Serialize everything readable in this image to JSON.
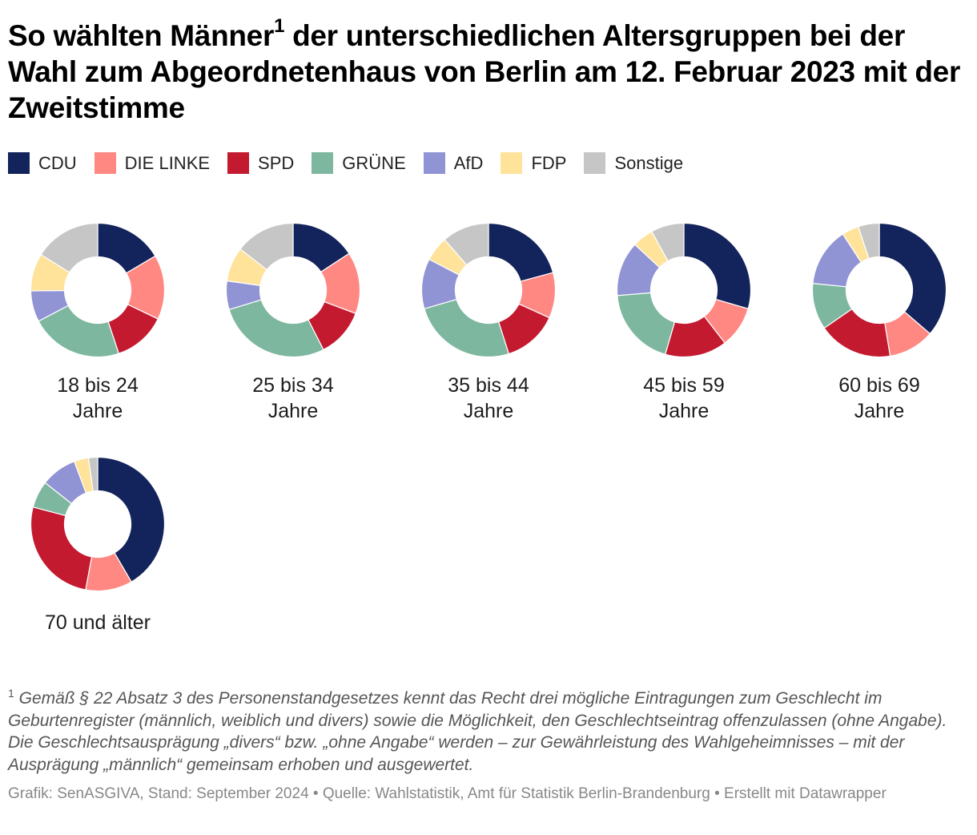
{
  "title": {
    "part1": "So wählten Männer",
    "superscript": "1",
    "part2": " der unterschiedlichen Altersgruppen bei der Wahl zum Abgeordnetenhaus von Berlin am 12. Februar 2023 mit der Zweitstimme"
  },
  "legend": [
    {
      "label": "CDU",
      "color": "#13235b"
    },
    {
      "label": "DIE LINKE",
      "color": "#ff8883"
    },
    {
      "label": "SPD",
      "color": "#c31a30"
    },
    {
      "label": "GRÜNE",
      "color": "#7db79f"
    },
    {
      "label": "AfD",
      "color": "#9093d4"
    },
    {
      "label": "FDP",
      "color": "#ffe39b"
    },
    {
      "label": "Sonstige",
      "color": "#c6c6c6"
    }
  ],
  "chart_data": {
    "type": "pie",
    "variant": "donut",
    "title": "So wählten Männer der unterschiedlichen Altersgruppen bei der Wahl zum Abgeordnetenhaus von Berlin am 12. Februar 2023 mit der Zweitstimme",
    "unit": "%",
    "categories": [
      "CDU",
      "DIE LINKE",
      "SPD",
      "GRÜNE",
      "AfD",
      "FDP",
      "Sonstige"
    ],
    "legend_position": "top-left",
    "charts": [
      {
        "label_line1": "18 bis 24",
        "label_line2": "Jahre",
        "values": [
          16.5,
          15.6,
          12.8,
          22.4,
          7.5,
          9.1,
          16.1
        ]
      },
      {
        "label_line1": "25 bis 34",
        "label_line2": "Jahre",
        "values": [
          15.8,
          14.9,
          11.8,
          27.8,
          6.9,
          8.3,
          14.5
        ]
      },
      {
        "label_line1": "35 bis 44",
        "label_line2": "Jahre",
        "values": [
          20.8,
          11.0,
          13.3,
          25.4,
          12.1,
          6.0,
          11.4
        ]
      },
      {
        "label_line1": "45 bis 59",
        "label_line2": "Jahre",
        "values": [
          29.5,
          10.0,
          15.0,
          19.2,
          13.2,
          5.1,
          8.0
        ]
      },
      {
        "label_line1": "60 bis 69",
        "label_line2": "Jahre",
        "values": [
          36.3,
          11.1,
          18.0,
          11.2,
          14.2,
          4.1,
          5.1
        ]
      },
      {
        "label_line1": "70 und älter",
        "label_line2": "",
        "values": [
          41.6,
          11.3,
          26.2,
          6.5,
          8.7,
          3.5,
          2.2
        ]
      }
    ]
  },
  "footnote": {
    "marker": "1",
    "text": " Gemäß § 22 Absatz 3 des Personenstandgesetzes kennt das Recht drei mögliche Eintragungen zum Geschlecht im Geburtenregister (männlich, weiblich und divers) sowie die Möglichkeit, den Geschlechtseintrag offenzulassen (ohne Angabe). Die Geschlechtsausprägung „divers“ bzw. „ohne Angabe“ werden – zur Gewährleistung des Wahlgeheimnisses – mit der Ausprägung „männlich“ gemeinsam erhoben und ausgewertet."
  },
  "source": "Grafik: SenASGIVA, Stand: September 2024 • Quelle: Wahlstatistik, Amt für Statistik Berlin-Brandenburg • Erstellt mit Datawrapper"
}
